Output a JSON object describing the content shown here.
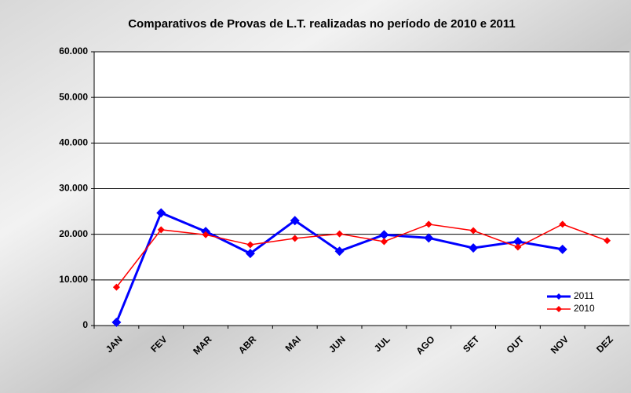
{
  "chart_data": {
    "type": "line",
    "title": "Comparativos de Provas de L.T. realizadas no período de 2010 e 2011",
    "categories": [
      "JAN",
      "FEV",
      "MAR",
      "ABR",
      "MAI",
      "JUN",
      "JUL",
      "AGO",
      "SET",
      "OUT",
      "NOV",
      "DEZ"
    ],
    "series": [
      {
        "name": "2011",
        "color": "#0000ff",
        "values": [
          700,
          24700,
          20600,
          15800,
          23000,
          16300,
          19900,
          19200,
          17000,
          18400,
          16700,
          null
        ]
      },
      {
        "name": "2010",
        "color": "#ff0000",
        "values": [
          8400,
          21000,
          19900,
          17700,
          19100,
          20100,
          18400,
          22200,
          20800,
          17200,
          22200,
          18600
        ]
      }
    ],
    "ylim": [
      0,
      60000
    ],
    "yticks": [
      0,
      {
        "value": 10000,
        "label": "10.000"
      },
      {
        "value": 20000,
        "label": "20.000"
      },
      {
        "value": 30000,
        "label": "30.000"
      },
      {
        "value": 40000,
        "label": "40.000"
      },
      {
        "value": 50000,
        "label": "50.000"
      },
      {
        "value": 60000,
        "label": "60.000"
      }
    ],
    "grid": true,
    "legend": "bottom-right"
  }
}
